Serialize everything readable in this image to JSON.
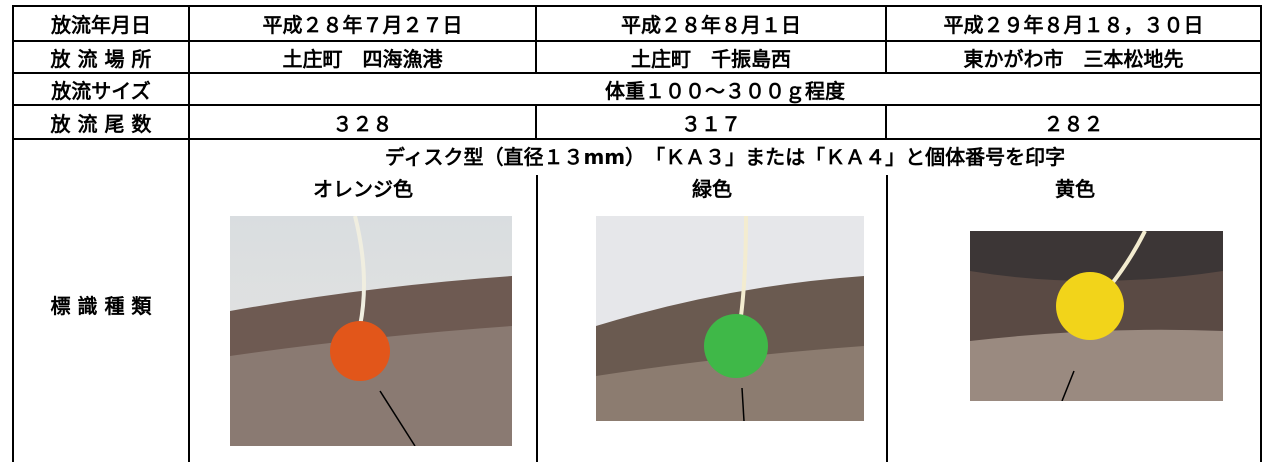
{
  "table": {
    "rows": [
      [
        "放流年月日",
        "平成２８年７月２７日",
        "平成２８年８月１日",
        "平成２９年８月１８，３０日"
      ],
      [
        "放 流 場 所",
        "土庄町　四海漁港",
        "土庄町　千振島西",
        "東かがわ市　三本松地先"
      ],
      [
        "放流サイズ",
        "体重１００～３００ｇ程度"
      ],
      [
        "放 流 尾 数",
        "３２８",
        "３１７",
        "２８２"
      ]
    ]
  },
  "tag": {
    "label": "標 識 種 類",
    "description": "ディスク型（直径１３mm）　「ＫＡ３」または「ＫＡ４」と個体番号を印字",
    "colors": [
      "オレンジ色",
      "緑色",
      "黄色"
    ]
  }
}
